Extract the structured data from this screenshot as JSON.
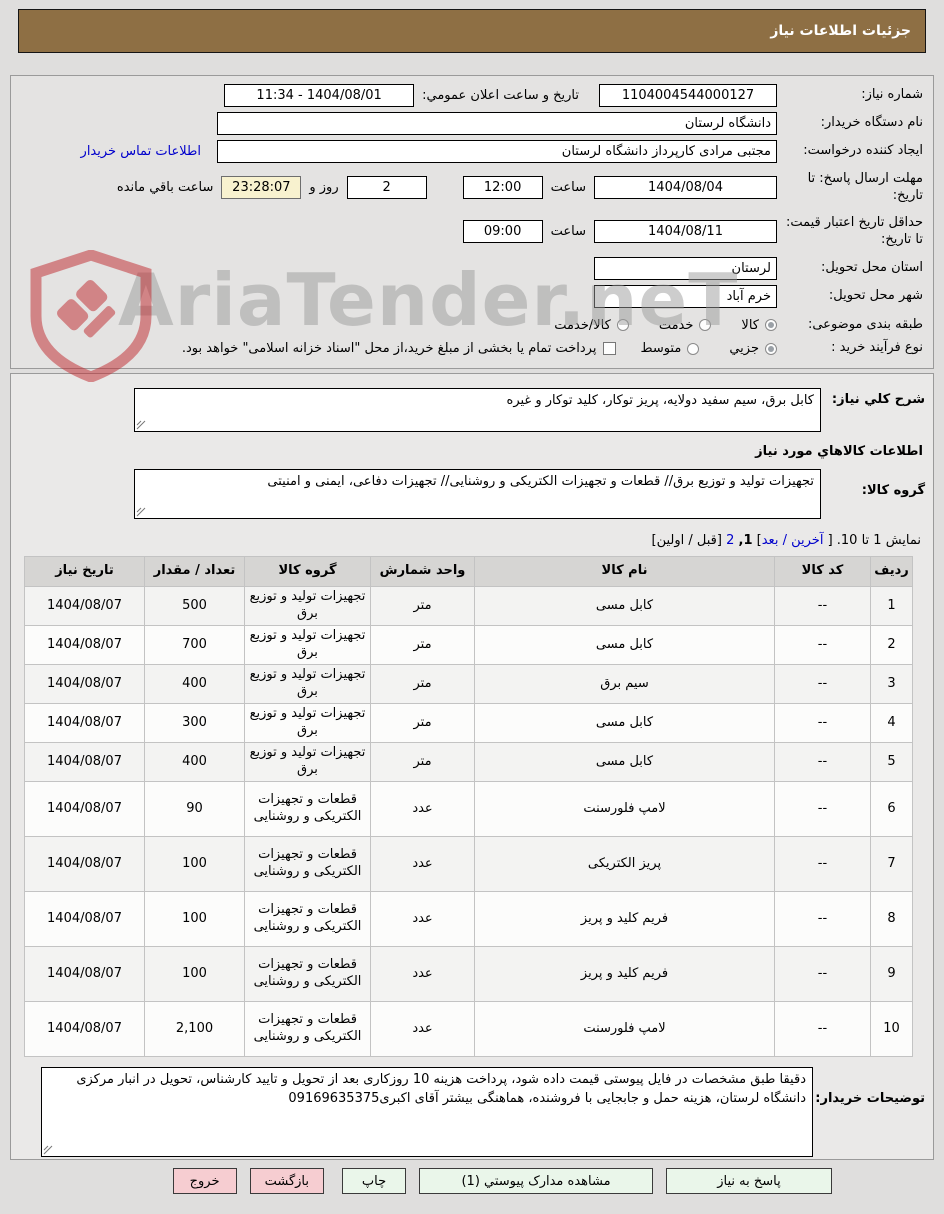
{
  "page": {
    "title": "جزئیات اطلاعات نیاز"
  },
  "watermark": {
    "text": "AriaTender.neT"
  },
  "colors": {
    "header_bg": "#8e6f44",
    "link_blue": "#0000cc",
    "countdown_bg": "#f8f2cf",
    "button_green": "#eaf6ea",
    "button_pink": "#f6cdd1",
    "watermark_red": "#c0272d",
    "watermark_gray": "#9c9c9c"
  },
  "form": {
    "need_number": {
      "label": "شماره نیاز:",
      "value": "1104004544000127"
    },
    "announce": {
      "label": "تاریخ و ساعت اعلان عمومي:",
      "value": "1404/08/01 - 11:34"
    },
    "buyer_org": {
      "label": "نام دستگاه خریدار:",
      "value": "دانشگاه لرستان"
    },
    "creator": {
      "label": "ایجاد کننده درخواست:",
      "value": "مجتبی مرادی کارپرداز دانشگاه لرستان",
      "contact_link": "اطلاعات تماس خریدار"
    },
    "deadline": {
      "label": "مهلت ارسال پاسخ: تا تاریخ:",
      "date": "1404/08/04",
      "hour_label": "ساعت",
      "time": "12:00",
      "days": "2",
      "days_label": "روز و",
      "countdown": "23:28:07",
      "remaining_label": "ساعت باقي مانده"
    },
    "price_validity": {
      "label": "حداقل تاریخ اعتبار قیمت: تا تاریخ:",
      "date": "1404/08/11",
      "hour_label": "ساعت",
      "time": "09:00"
    },
    "province": {
      "label": "استان محل تحویل:",
      "value": "لرستان"
    },
    "city": {
      "label": "شهر محل تحویل:",
      "value": "خرم آباد"
    },
    "classification": {
      "label": "طبقه بندی موضوعی:",
      "options": [
        {
          "label": "کالا",
          "selected": true
        },
        {
          "label": "خدمت",
          "selected": false
        },
        {
          "label": "کالا/خدمت",
          "selected": false
        }
      ]
    },
    "process": {
      "label": "نوع فرآیند خرید :",
      "options": [
        {
          "label": "جزیي",
          "selected": true
        },
        {
          "label": "متوسط",
          "selected": false
        }
      ],
      "treasury_checkbox": "پرداخت تمام یا بخشی از مبلغ خرید،از محل \"اسناد خزانه اسلامی\" خواهد بود."
    }
  },
  "description": {
    "label": "شرح کلي نیاز:",
    "value": "کابل برق، سیم سفید دولایه، پریز توکار، کلید توکار و غیره"
  },
  "goods_heading": "اطلاعات کالاهاي مورد نیاز",
  "goods_group": {
    "label": "گروه کالا:",
    "value": "تجهیزات تولید و توزیع برق// قطعات و تجهیزات الکتریکی و روشنایی// تجهیزات دفاعی، ایمنی و امنیتی"
  },
  "pagination": {
    "prefix": "نمایش 1 تا 10. [ ",
    "last_next_link": "آخرین / بعد",
    "close_bracket": "] ",
    "current_page": "1,",
    "page_two_link": "2",
    "first_prev": " [قبل / اولین]"
  },
  "table": {
    "headers": [
      "ردیف",
      "کد کالا",
      "نام کالا",
      "واحد شمارش",
      "گروه کالا",
      "تعداد / مقدار",
      "تاریخ نیاز"
    ],
    "rows": [
      [
        "1",
        "--",
        "کابل مسی",
        "متر",
        "تجهیزات تولید و توزیع برق",
        "500",
        "1404/08/07"
      ],
      [
        "2",
        "--",
        "کابل مسی",
        "متر",
        "تجهیزات تولید و توزیع برق",
        "700",
        "1404/08/07"
      ],
      [
        "3",
        "--",
        "سیم برق",
        "متر",
        "تجهیزات تولید و توزیع برق",
        "400",
        "1404/08/07"
      ],
      [
        "4",
        "--",
        "کابل مسی",
        "متر",
        "تجهیزات تولید و توزیع برق",
        "300",
        "1404/08/07"
      ],
      [
        "5",
        "--",
        "کابل مسی",
        "متر",
        "تجهیزات تولید و توزیع برق",
        "400",
        "1404/08/07"
      ],
      [
        "6",
        "--",
        "لامپ فلورسنت",
        "عدد",
        "قطعات و تجهیزات الکتریکی و روشنایی",
        "90",
        "1404/08/07"
      ],
      [
        "7",
        "--",
        "پریز الکتریکی",
        "عدد",
        "قطعات و تجهیزات الکتریکی و روشنایی",
        "100",
        "1404/08/07"
      ],
      [
        "8",
        "--",
        "فریم کلید و پریز",
        "عدد",
        "قطعات و تجهیزات الکتریکی و روشنایی",
        "100",
        "1404/08/07"
      ],
      [
        "9",
        "--",
        "فریم کلید و پریز",
        "عدد",
        "قطعات و تجهیزات الکتریکی و روشنایی",
        "100",
        "1404/08/07"
      ],
      [
        "10",
        "--",
        "لامپ فلورسنت",
        "عدد",
        "قطعات و تجهیزات الکتریکی و روشنایی",
        "2,100",
        "1404/08/07"
      ]
    ]
  },
  "notes": {
    "label": "توضیحات خریدار:",
    "value": "دقیقا طبق مشخصات در فایل پیوستی قیمت داده شود، پرداخت هزینه 10 روزکاری بعد از تحویل و تایید کارشناس، تحویل در انبار مرکزی دانشگاه لرستان، هزینه حمل و جابجایی با فروشنده، هماهنگی بیشتر آقای اکبری09169635375"
  },
  "footer": {
    "buttons": [
      {
        "name": "reply-to-need-button",
        "label": "پاسخ به نیاز",
        "style": "green",
        "extra": "btn-reply"
      },
      {
        "name": "view-attachments-button",
        "label": "مشاهده مدارک پیوستي (1)",
        "style": "green",
        "extra": "btn-attach"
      },
      {
        "name": "print-button",
        "label": "چاپ",
        "style": "green",
        "extra": "btn-print"
      },
      {
        "name": "back-button",
        "label": "بازگشت",
        "style": "pink",
        "extra": "btn-back"
      },
      {
        "name": "exit-button",
        "label": "خروج",
        "style": "pink",
        "extra": "btn-exit"
      }
    ]
  }
}
